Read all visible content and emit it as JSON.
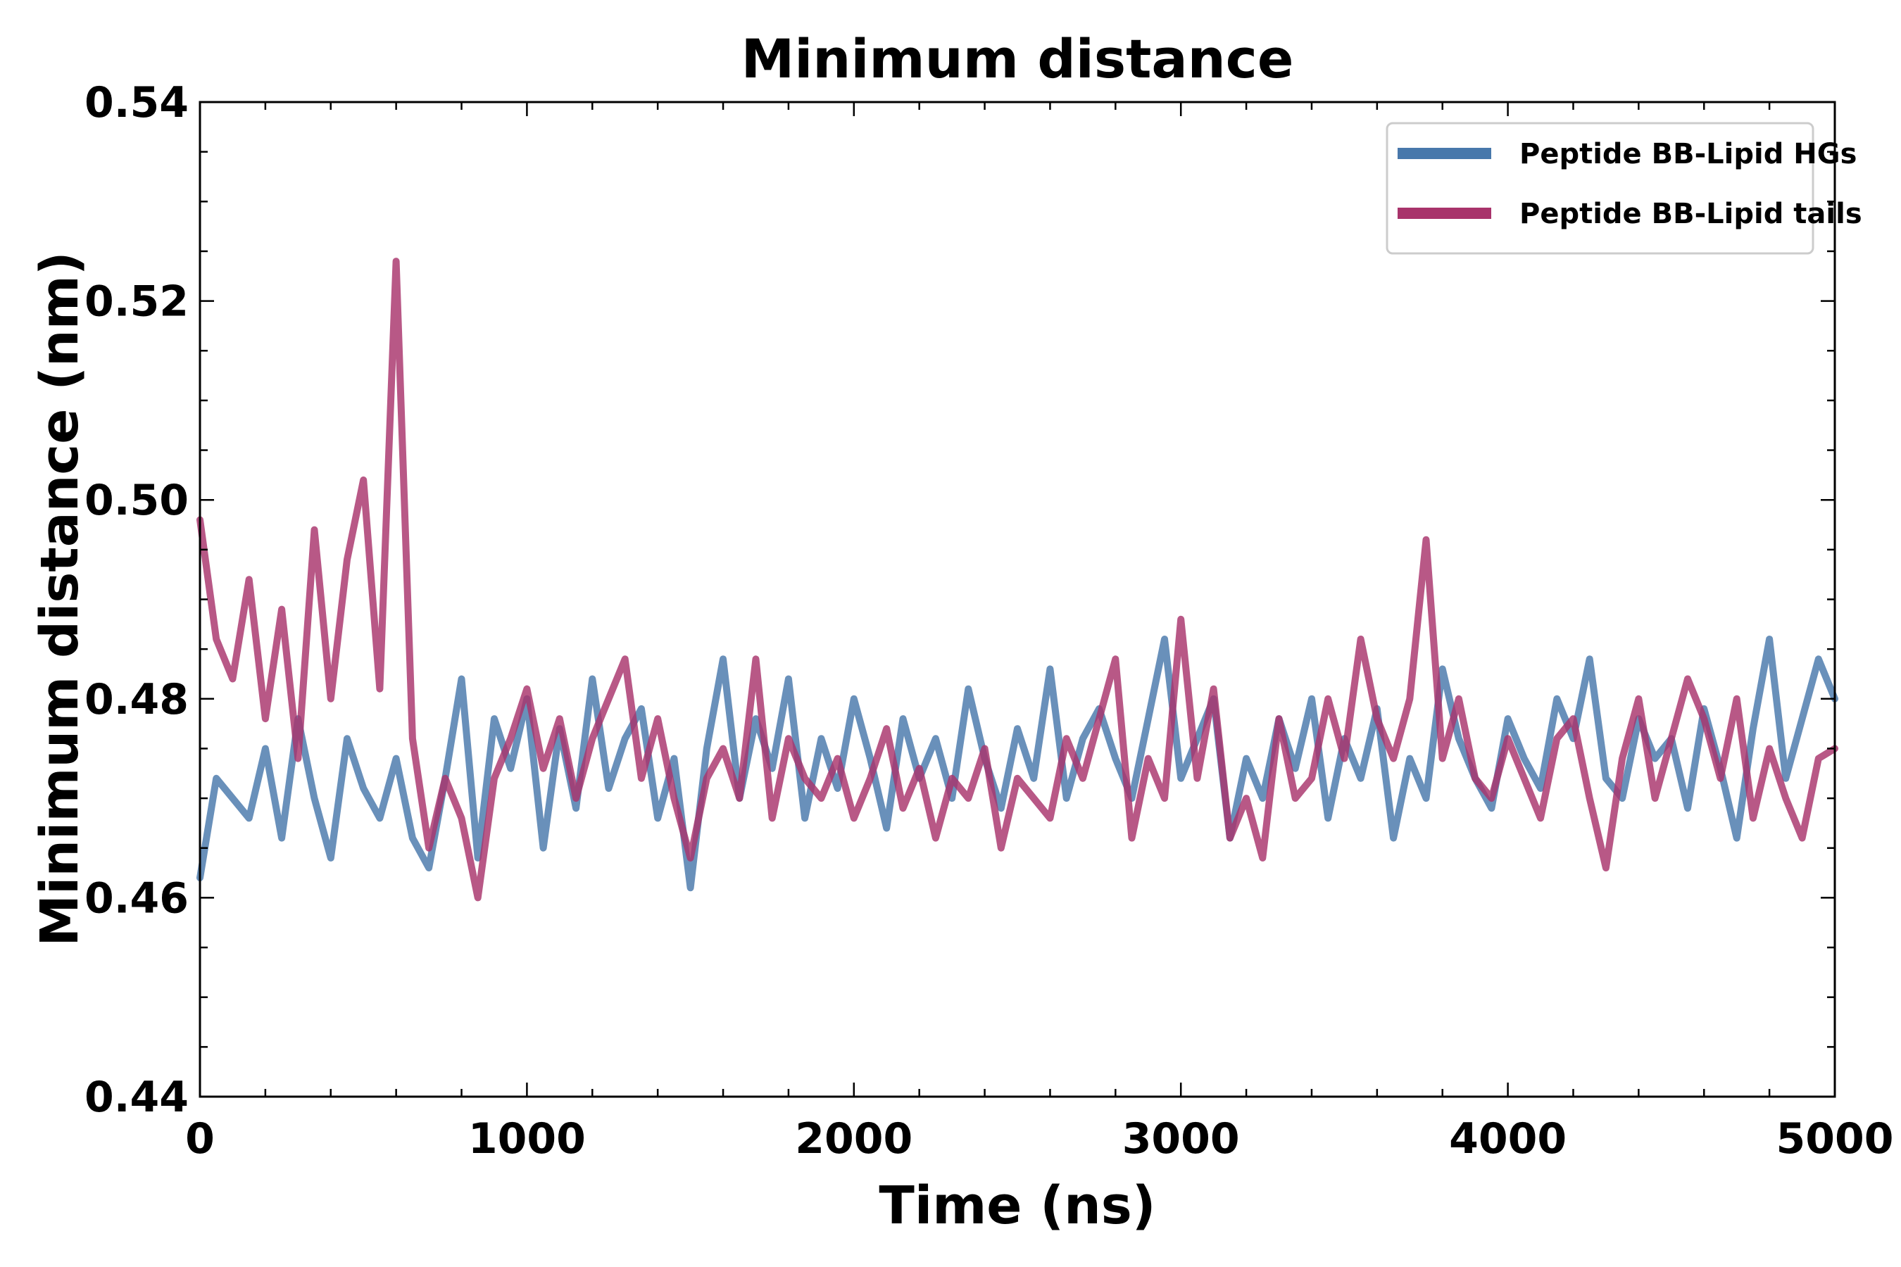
{
  "chart_data": {
    "type": "line",
    "title": "Minimum distance",
    "xlabel": "Time (ns)",
    "ylabel": "Minimum distance (nm)",
    "xlim": [
      0,
      5000
    ],
    "ylim": [
      0.44,
      0.54
    ],
    "xticks": [
      0,
      1000,
      2000,
      3000,
      4000,
      5000
    ],
    "xtick_labels": [
      "0",
      "1000",
      "2000",
      "3000",
      "4000",
      "5000"
    ],
    "yticks": [
      0.44,
      0.46,
      0.48,
      0.5,
      0.52,
      0.54
    ],
    "ytick_labels": [
      "0.44",
      "0.46",
      "0.48",
      "0.50",
      "0.52",
      "0.54"
    ],
    "grid": false,
    "legend_position": "top-right",
    "x": [
      0,
      50,
      100,
      150,
      200,
      250,
      300,
      350,
      400,
      450,
      500,
      550,
      600,
      650,
      700,
      750,
      800,
      850,
      900,
      950,
      1000,
      1050,
      1100,
      1150,
      1200,
      1250,
      1300,
      1350,
      1400,
      1450,
      1500,
      1550,
      1600,
      1650,
      1700,
      1750,
      1800,
      1850,
      1900,
      1950,
      2000,
      2050,
      2100,
      2150,
      2200,
      2250,
      2300,
      2350,
      2400,
      2450,
      2500,
      2550,
      2600,
      2650,
      2700,
      2750,
      2800,
      2850,
      2900,
      2950,
      3000,
      3050,
      3100,
      3150,
      3200,
      3250,
      3300,
      3350,
      3400,
      3450,
      3500,
      3550,
      3600,
      3650,
      3700,
      3750,
      3800,
      3850,
      3900,
      3950,
      4000,
      4050,
      4100,
      4150,
      4200,
      4250,
      4300,
      4350,
      4400,
      4450,
      4500,
      4550,
      4600,
      4650,
      4700,
      4750,
      4800,
      4850,
      4900,
      4950,
      5000
    ],
    "series": [
      {
        "name": "Peptide BB-Lipid HGs",
        "color": "#4878ab",
        "values": [
          0.462,
          0.472,
          0.47,
          0.468,
          0.475,
          0.466,
          0.478,
          0.47,
          0.464,
          0.476,
          0.471,
          0.468,
          0.474,
          0.466,
          0.463,
          0.472,
          0.482,
          0.464,
          0.478,
          0.473,
          0.48,
          0.465,
          0.477,
          0.469,
          0.482,
          0.471,
          0.476,
          0.479,
          0.468,
          0.474,
          0.461,
          0.475,
          0.484,
          0.47,
          0.478,
          0.473,
          0.482,
          0.468,
          0.476,
          0.471,
          0.48,
          0.474,
          0.467,
          0.478,
          0.472,
          0.476,
          0.47,
          0.481,
          0.474,
          0.469,
          0.477,
          0.472,
          0.483,
          0.47,
          0.476,
          0.479,
          0.474,
          0.47,
          0.478,
          0.486,
          0.472,
          0.476,
          0.48,
          0.466,
          0.474,
          0.47,
          0.478,
          0.473,
          0.48,
          0.468,
          0.476,
          0.472,
          0.479,
          0.466,
          0.474,
          0.47,
          0.483,
          0.476,
          0.472,
          0.469,
          0.478,
          0.474,
          0.471,
          0.48,
          0.476,
          0.484,
          0.472,
          0.47,
          0.478,
          0.474,
          0.476,
          0.469,
          0.479,
          0.473,
          0.466,
          0.477,
          0.486,
          0.472,
          0.478,
          0.484,
          0.48
        ]
      },
      {
        "name": "Peptide BB-Lipid tails",
        "color": "#a8336b",
        "values": [
          0.498,
          0.486,
          0.482,
          0.492,
          0.478,
          0.489,
          0.474,
          0.497,
          0.48,
          0.494,
          0.502,
          0.481,
          0.524,
          0.476,
          0.465,
          0.472,
          0.468,
          0.46,
          0.472,
          0.476,
          0.481,
          0.473,
          0.478,
          0.47,
          0.476,
          0.48,
          0.484,
          0.472,
          0.478,
          0.47,
          0.464,
          0.472,
          0.475,
          0.47,
          0.484,
          0.468,
          0.476,
          0.472,
          0.47,
          0.474,
          0.468,
          0.472,
          0.477,
          0.469,
          0.473,
          0.466,
          0.472,
          0.47,
          0.475,
          0.465,
          0.472,
          0.47,
          0.468,
          0.476,
          0.472,
          0.478,
          0.484,
          0.466,
          0.474,
          0.47,
          0.488,
          0.472,
          0.481,
          0.466,
          0.47,
          0.464,
          0.478,
          0.47,
          0.472,
          0.48,
          0.474,
          0.486,
          0.478,
          0.474,
          0.48,
          0.496,
          0.474,
          0.48,
          0.472,
          0.47,
          0.476,
          0.472,
          0.468,
          0.476,
          0.478,
          0.47,
          0.463,
          0.474,
          0.48,
          0.47,
          0.476,
          0.482,
          0.478,
          0.472,
          0.48,
          0.468,
          0.475,
          0.47,
          0.466,
          0.474,
          0.475
        ]
      }
    ]
  }
}
